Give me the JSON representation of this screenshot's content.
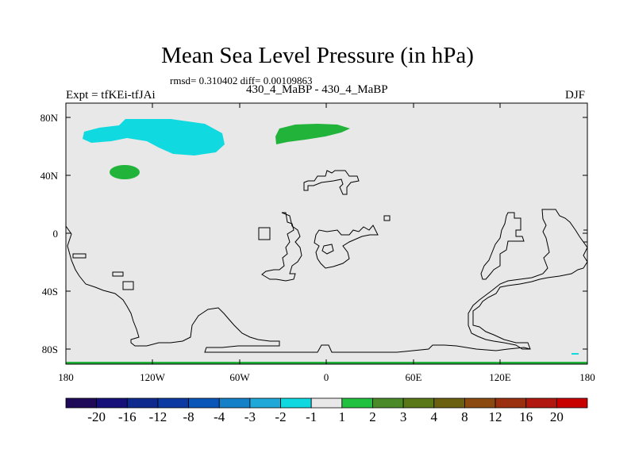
{
  "title": "Mean Sea Level Pressure (in hPa)",
  "stats": "rmsd= 0.310402 diff= 0.00109863",
  "left_label": "Expt = tfKEi-tfJAi",
  "center_label": "430_4_MaBP - 430_4_MaBP",
  "right_label": "DJF",
  "y_ticks": [
    "80N",
    "40N",
    "0",
    "40S",
    "80S"
  ],
  "x_ticks": [
    "180",
    "120W",
    "60W",
    "0",
    "60E",
    "120E",
    "180"
  ],
  "colorbar": {
    "labels": [
      "-20",
      "-16",
      "-12",
      "-8",
      "-4",
      "-3",
      "-2",
      "-1",
      "1",
      "2",
      "3",
      "4",
      "8",
      "12",
      "16",
      "20"
    ],
    "colors": [
      "#1f0a5a",
      "#15107a",
      "#0f2a8f",
      "#0b3aa3",
      "#0a55b8",
      "#1480c8",
      "#20a8d8",
      "#10d8e0",
      "#e8e8e8",
      "#20c040",
      "#4a8a28",
      "#5a7818",
      "#6a6010",
      "#8a4a10",
      "#9a3010",
      "#b01810",
      "#c80000"
    ]
  },
  "colors": {
    "background": "#e8e8e8",
    "positive": "#22b33a",
    "negative": "#11d9e0"
  }
}
